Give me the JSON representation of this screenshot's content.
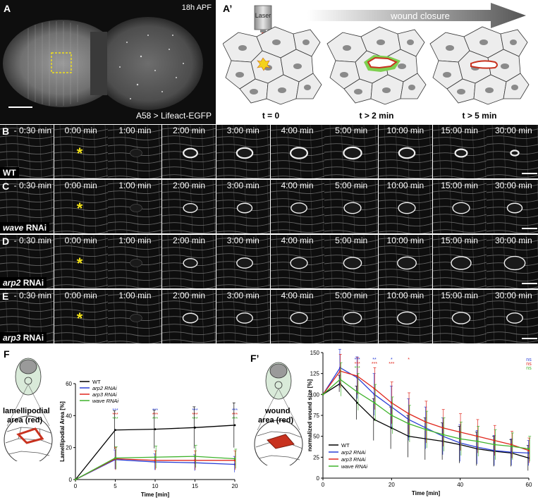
{
  "panelA": {
    "letter": "A",
    "stage": "18h APF",
    "genotype": "A58 > Lifeact-EGFP"
  },
  "panelA2": {
    "letter": "A’",
    "laser": "Laser",
    "arrow": "wound closure",
    "t0": "t = 0",
    "t2": "t > 2 min",
    "t5": "t > 5 min"
  },
  "rows": [
    {
      "letter": "B",
      "label_italic": "",
      "label": "WT"
    },
    {
      "letter": "C",
      "label_italic": "wave",
      "label": " RNAi"
    },
    {
      "letter": "D",
      "label_italic": "arp2",
      "label": " RNAi"
    },
    {
      "letter": "E",
      "label_italic": "arp3",
      "label": " RNAi"
    }
  ],
  "timepoints": [
    "- 0:30 min",
    "0:00 min",
    "1:00 min",
    "2:00 min",
    "3:00 min",
    "4:00 min",
    "5:00 min",
    "10:00 min",
    "15:00 min",
    "30:00 min"
  ],
  "star": "*",
  "panelF": {
    "letter": "F",
    "schematic_label_1": "lamellipodial",
    "schematic_label_2": "area (red)"
  },
  "panelF2": {
    "letter": "F’",
    "schematic_label_1": "wound",
    "schematic_label_2": "area (red)"
  },
  "colors": {
    "WT": "#000000",
    "arp2": "#2a3fd6",
    "arp3": "#e0261c",
    "wave": "#3fb32c",
    "wound_red": "#c8321f"
  },
  "chart_data": [
    {
      "type": "line",
      "xlabel": "Time [min]",
      "ylabel": "Lamellipodial Area [%]",
      "xlim": [
        0,
        20
      ],
      "ylim": [
        0,
        60
      ],
      "xticks": [
        0,
        5,
        10,
        15,
        20
      ],
      "yticks": [
        0,
        20,
        40,
        60
      ],
      "x": [
        0,
        5,
        10,
        15,
        20
      ],
      "legend_position": "top-left",
      "series": [
        {
          "name": "WT",
          "color": "#000000",
          "values": [
            0,
            31,
            31.5,
            32.5,
            34
          ],
          "err": [
            0,
            12,
            12,
            13,
            14
          ]
        },
        {
          "name": "arp2 RNAi",
          "color": "#2a3fd6",
          "values": [
            0,
            12.5,
            11,
            10.5,
            9.5
          ],
          "err": [
            0,
            6,
            5,
            5,
            5
          ]
        },
        {
          "name": "arp3 RNAi",
          "color": "#e0261c",
          "values": [
            0,
            13,
            12,
            12,
            12
          ],
          "err": [
            0,
            7,
            6,
            6,
            6
          ]
        },
        {
          "name": "wave RNAi",
          "color": "#3fb32c",
          "values": [
            0,
            13.5,
            14,
            14.5,
            13
          ],
          "err": [
            0,
            7,
            7,
            7,
            6
          ]
        }
      ],
      "annotations": [
        {
          "x": 5,
          "lines": [
            [
              "***",
              "#2a3fd6"
            ],
            [
              "***",
              "#e0261c"
            ],
            [
              "***",
              "#3fb32c"
            ]
          ]
        },
        {
          "x": 10,
          "lines": [
            [
              "***",
              "#2a3fd6"
            ],
            [
              "***",
              "#e0261c"
            ],
            [
              "***",
              "#3fb32c"
            ]
          ]
        },
        {
          "x": 15,
          "lines": [
            [
              "***",
              "#2a3fd6"
            ],
            [
              "***",
              "#e0261c"
            ],
            [
              "***",
              "#3fb32c"
            ]
          ]
        },
        {
          "x": 20,
          "lines": [
            [
              "***",
              "#2a3fd6"
            ],
            [
              "***",
              "#e0261c"
            ],
            [
              "***",
              "#3fb32c"
            ]
          ]
        }
      ]
    },
    {
      "type": "line",
      "xlabel": "Time [min]",
      "ylabel": "normalized wound size [%]",
      "xlim": [
        0,
        60
      ],
      "ylim": [
        0,
        150
      ],
      "xticks": [
        0,
        20,
        40,
        60
      ],
      "yticks": [
        0,
        25,
        50,
        75,
        100,
        125,
        150
      ],
      "x": [
        0,
        5,
        10,
        15,
        20,
        25,
        30,
        35,
        40,
        45,
        50,
        55,
        60
      ],
      "legend_position": "bottom-left",
      "series": [
        {
          "name": "WT",
          "color": "#000000",
          "values": [
            100,
            113,
            90,
            70,
            60,
            50,
            47,
            44,
            40,
            35,
            32,
            30,
            24
          ],
          "err": [
            0,
            10,
            20,
            25,
            25,
            25,
            25,
            22,
            22,
            20,
            18,
            16,
            15
          ]
        },
        {
          "name": "arp2 RNAi",
          "color": "#2a3fd6",
          "values": [
            100,
            132,
            120,
            100,
            85,
            70,
            60,
            50,
            42,
            37,
            33,
            31,
            30
          ],
          "err": [
            0,
            22,
            25,
            25,
            25,
            25,
            25,
            22,
            22,
            20,
            18,
            16,
            15
          ]
        },
        {
          "name": "arp3 RNAi",
          "color": "#e0261c",
          "values": [
            100,
            128,
            122,
            107,
            90,
            77,
            67,
            60,
            55,
            50,
            45,
            40,
            33
          ],
          "err": [
            0,
            20,
            22,
            25,
            25,
            25,
            25,
            22,
            22,
            20,
            18,
            16,
            15
          ]
        },
        {
          "name": "wave RNAi",
          "color": "#3fb32c",
          "values": [
            100,
            118,
            103,
            90,
            75,
            65,
            58,
            52,
            47,
            44,
            40,
            38,
            35
          ],
          "err": [
            0,
            20,
            22,
            22,
            22,
            22,
            22,
            20,
            20,
            18,
            18,
            16,
            15
          ]
        }
      ],
      "annotations": [
        {
          "x": 10,
          "lines": [
            [
              "***",
              "#2a3fd6"
            ],
            [
              "***",
              "#e0261c"
            ],
            [
              "***",
              "#3fb32c"
            ]
          ]
        },
        {
          "x": 15,
          "lines": [
            [
              "**",
              "#2a3fd6"
            ],
            [
              "***",
              "#e0261c"
            ]
          ]
        },
        {
          "x": 20,
          "lines": [
            [
              "*",
              "#2a3fd6"
            ],
            [
              "***",
              "#e0261c"
            ]
          ]
        },
        {
          "x": 25,
          "lines": [
            [
              "*",
              "#e0261c"
            ]
          ]
        },
        {
          "x": 60,
          "lines": [
            [
              "ns",
              "#2a3fd6"
            ],
            [
              "ns",
              "#e0261c"
            ],
            [
              "ns",
              "#3fb32c"
            ]
          ]
        }
      ]
    }
  ]
}
